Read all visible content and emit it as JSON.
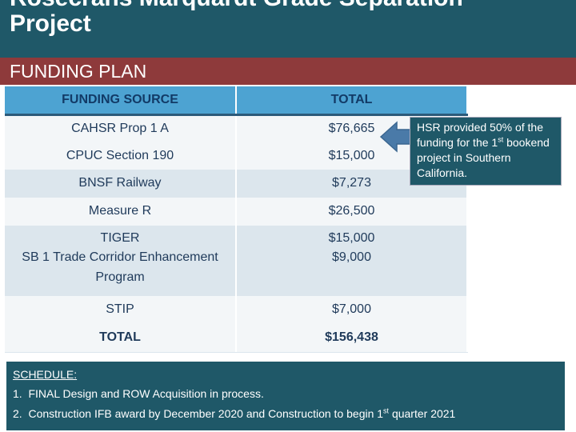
{
  "header": {
    "title_line1": "Rosecrans Marquardt Grade Separation",
    "title_line2": "Project"
  },
  "section": {
    "title": "FUNDING PLAN"
  },
  "table": {
    "headers": [
      "FUNDING SOURCE",
      "TOTAL"
    ],
    "rows": [
      {
        "source": "CAHSR Prop 1 A",
        "total": "$76,665"
      },
      {
        "source": "CPUC Section 190",
        "total": "$15,000"
      },
      {
        "source": "BNSF Railway",
        "total": "$7,273"
      },
      {
        "source": "Measure R",
        "total": "$26,500"
      },
      {
        "source": "TIGER",
        "total": "$15,000"
      },
      {
        "source": "SB 1 Trade Corridor Enhancement",
        "source_line2": "Program",
        "total": "$9,000"
      },
      {
        "source": "STIP",
        "total": "$7,000"
      }
    ],
    "total_row": {
      "source": "TOTAL",
      "total": "$156,438"
    }
  },
  "callout": {
    "text_part1": "HSR provided 50% of the funding for the 1",
    "text_sup": "st",
    "text_part2": " bookend project in Southern California."
  },
  "schedule": {
    "heading": "SCHEDULE:",
    "items": [
      {
        "num": "1.",
        "text": "FINAL Design and ROW Acquisition in process."
      },
      {
        "num": "2.",
        "text_part1": "Construction IFB award by December 2020 and Construction to begin 1",
        "text_sup": "st",
        "text_part2": " quarter 2021"
      }
    ]
  },
  "colors": {
    "title_bg": "#1f5868",
    "section_bg": "#8e3a3b",
    "header_row": "#4da3d2",
    "arrow": "#4a7aa8"
  }
}
